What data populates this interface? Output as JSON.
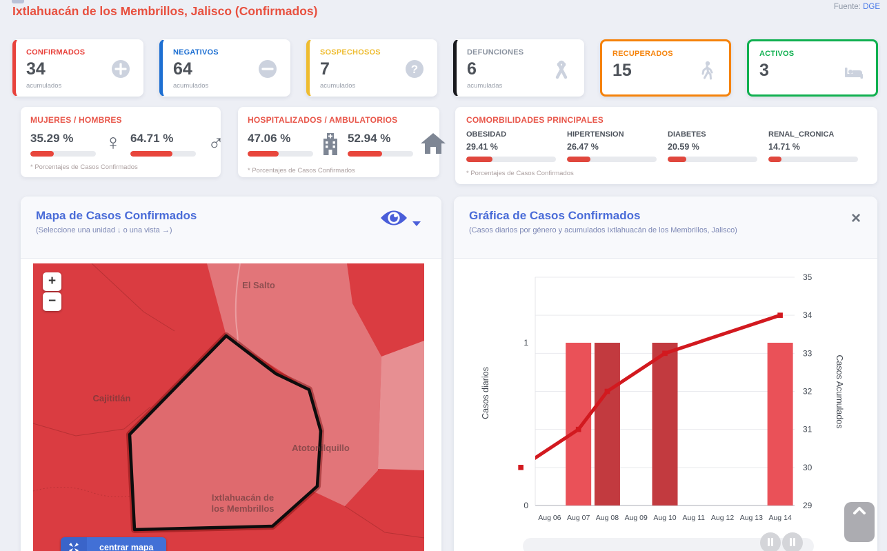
{
  "page": {
    "title": "Ixtlahuacán de los Membrillos, Jalisco (Confirmados)",
    "source_label": "Fuente:",
    "source_link": "DGE"
  },
  "stat_cards": [
    {
      "label": "CONFIRMADOS",
      "value": "34",
      "sublabel": "acumulados",
      "accent": "#e8423c",
      "label_color": "#e8423c",
      "icon": "plus-circle-icon"
    },
    {
      "label": "NEGATIVOS",
      "value": "64",
      "sublabel": "acumulados",
      "accent": "#1d6fd2",
      "label_color": "#1d6fd2",
      "icon": "minus-circle-icon"
    },
    {
      "label": "SOSPECHOSOS",
      "value": "7",
      "sublabel": "acumulados",
      "accent": "#eebc30",
      "label_color": "#eebc30",
      "icon": "question-circle-icon"
    },
    {
      "label": "DEFUNCIONES",
      "value": "6",
      "sublabel": "acumuladas",
      "accent": "#17181c",
      "label_color": "#8b93a0",
      "icon": "ribbon-icon"
    },
    {
      "label": "RECUPERADOS",
      "value": "15",
      "sublabel": "",
      "accent": "#f5820a",
      "label_color": "#f5820a",
      "icon": "walking-person-icon"
    },
    {
      "label": "ACTIVOS",
      "value": "3",
      "sublabel": "",
      "accent": "#10b050",
      "label_color": "#10b050",
      "icon": "bed-icon"
    }
  ],
  "gender_panel": {
    "title": "MUJERES / HOMBRES",
    "left_value": "35.29 %",
    "left_pct": 35.29,
    "right_value": "64.71 %",
    "right_pct": 64.71,
    "female_symbol": "♀",
    "male_symbol": "♂",
    "footnote": "* Porcentajes  de Casos Confirmados"
  },
  "hospital_panel": {
    "title": "HOSPITALIZADOS / AMBULATORIOS",
    "left_value": "47.06 %",
    "left_pct": 47.06,
    "right_value": "52.94 %",
    "right_pct": 52.94,
    "footnote": "* Porcentajes  de Casos Confirmados"
  },
  "comorbidities": {
    "title": "COMORBILIDADES PRINCIPALES",
    "footnote": "* Porcentajes  de Casos Confirmados",
    "bar_color": "#e0473d",
    "items": [
      {
        "name": "OBESIDAD",
        "value": "29.41 %",
        "pct": 29.41
      },
      {
        "name": "HIPERTENSION",
        "value": "26.47 %",
        "pct": 26.47
      },
      {
        "name": "DIABETES",
        "value": "20.59 %",
        "pct": 20.59
      },
      {
        "name": "RENAL_CRONICA",
        "value": "14.71 %",
        "pct": 14.71
      }
    ]
  },
  "map_panel": {
    "title": "Mapa de Casos Confirmados",
    "subtitle": "(Seleccione una unidad ↓ o una vista →)",
    "zoom_in": "+",
    "zoom_out": "−",
    "center_button": "centrar mapa",
    "palette": {
      "base": "#da3c41",
      "region_light": "#e27579",
      "region_lighter": "#e78f92",
      "selected": "#df6a6e",
      "selected_border": "#0d0d0d"
    },
    "labels": [
      {
        "text": "El Salto"
      },
      {
        "text": "Cajititlán"
      },
      {
        "text": "Atotonilquillo"
      },
      {
        "text": "Ixtlahuacán de"
      },
      {
        "text": "los Membrillos"
      }
    ]
  },
  "chart_panel": {
    "title": "Gráfica de Casos Confirmados",
    "subtitle": "(Casos diarios por género y acumulados Ixtlahuacán de los Membrillos, Jalisco)",
    "close_glyph": "×"
  },
  "chart_data": {
    "type": "combo",
    "title": "Gráfica de Casos Confirmados",
    "categories": [
      "Aug 06",
      "Aug 07",
      "Aug 08",
      "Aug 09",
      "Aug 10",
      "Aug 11",
      "Aug 12",
      "Aug 13",
      "Aug 14"
    ],
    "bar_series": {
      "name": "Casos diarios",
      "axis": "left",
      "values": [
        0,
        1,
        1,
        0,
        1,
        0,
        0,
        0,
        1
      ],
      "bar_colors": [
        null,
        "#ea5158",
        "#c23a3f",
        null,
        "#c23a3f",
        null,
        null,
        null,
        "#ea5158"
      ]
    },
    "line_series": {
      "name": "Casos Acumulados",
      "axis": "right",
      "color": "#d2191f",
      "points": [
        {
          "category": "Aug 05",
          "index": -1,
          "value": 30
        },
        {
          "category": "Aug 07",
          "index": 1,
          "value": 31
        },
        {
          "category": "Aug 08",
          "index": 2,
          "value": 32
        },
        {
          "category": "Aug 10",
          "index": 4,
          "value": 33
        },
        {
          "category": "Aug 14",
          "index": 8,
          "value": 34
        }
      ]
    },
    "left_axis": {
      "title": "Casos diarios",
      "ticks": [
        0,
        1
      ],
      "min": 0,
      "max": 1.43
    },
    "right_axis": {
      "title": "Casos Acumulados",
      "ticks": [
        29,
        30,
        31,
        32,
        33,
        34,
        35
      ],
      "min": 29,
      "max": 35
    },
    "grid": true
  }
}
